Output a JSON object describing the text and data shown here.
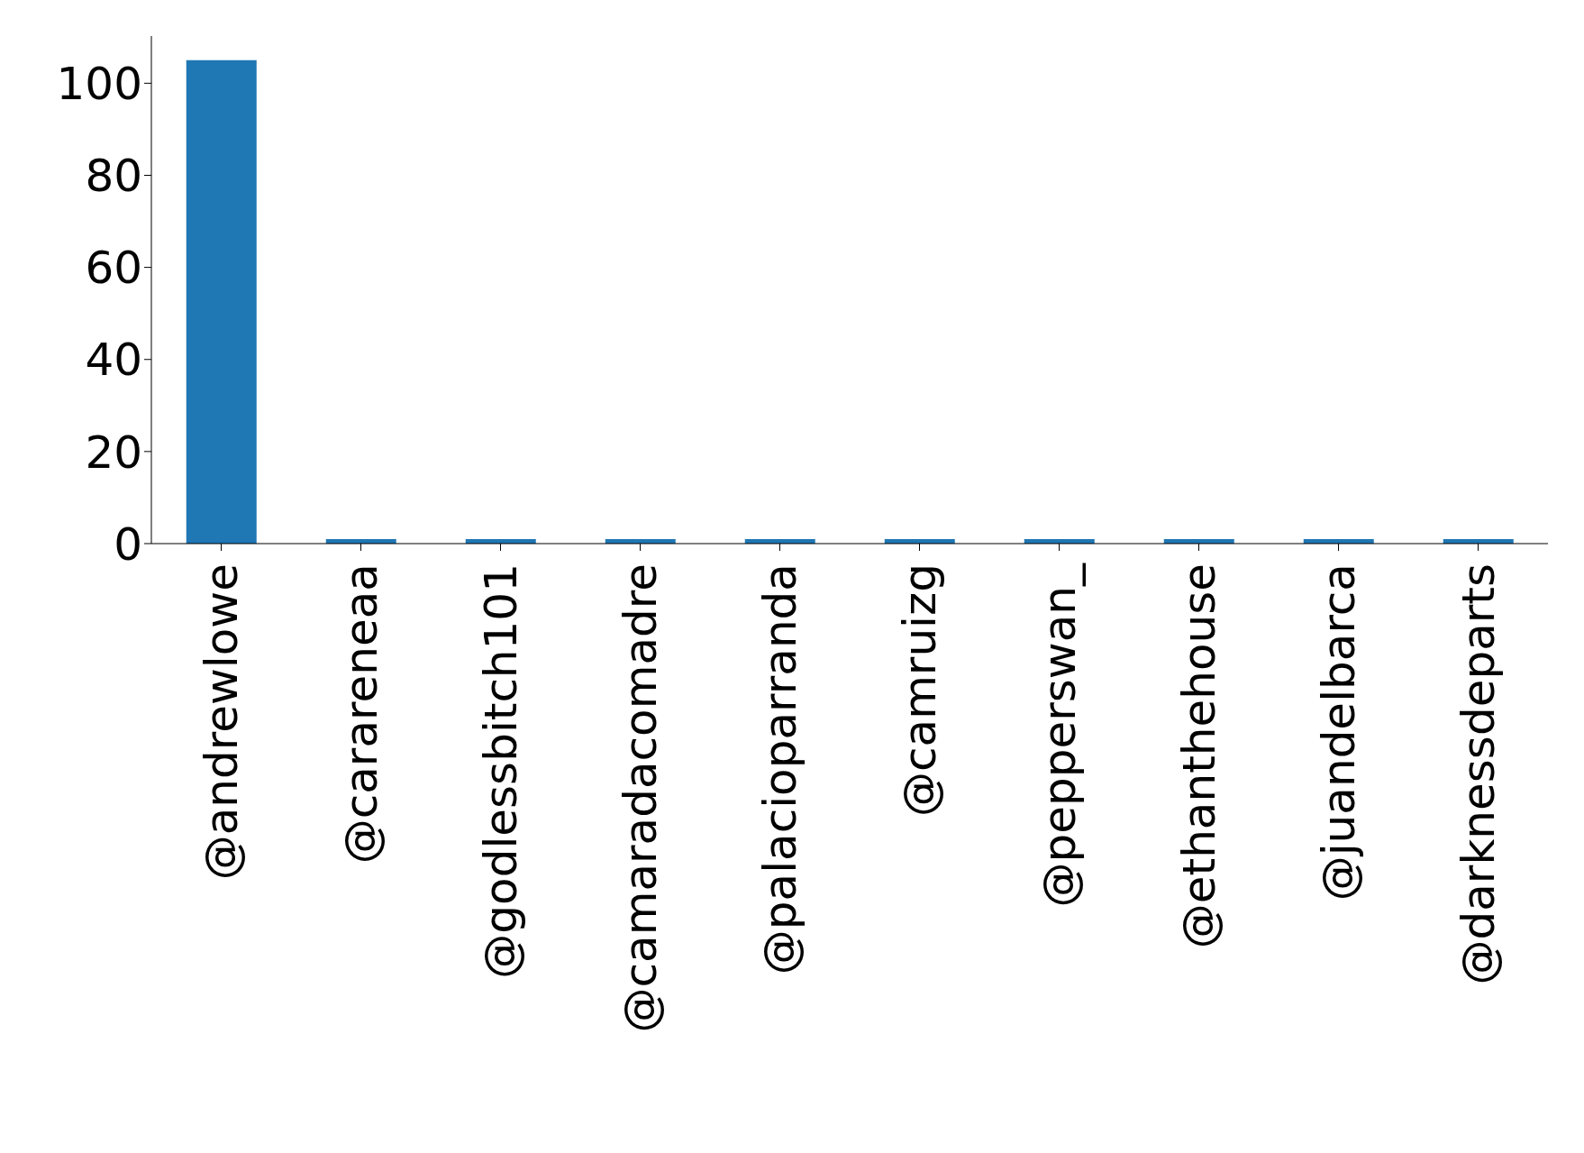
{
  "chart_data": {
    "type": "bar",
    "categories": [
      "@andrewlowe",
      "@carareneaa",
      "@godlessbitch101",
      "@camaradacomadre",
      "@palacioparranda",
      "@camruizg",
      "@pepperswan_",
      "@ethanthehouse",
      "@juandelbarca",
      "@darknessdeparts"
    ],
    "values": [
      105,
      1,
      1,
      1,
      1,
      1,
      1,
      1,
      1,
      1
    ],
    "color": "#1f77b4",
    "ylim": [
      0,
      110.25
    ],
    "yticks": [
      0,
      20,
      40,
      60,
      80,
      100
    ],
    "grid": false,
    "legend": false
  }
}
